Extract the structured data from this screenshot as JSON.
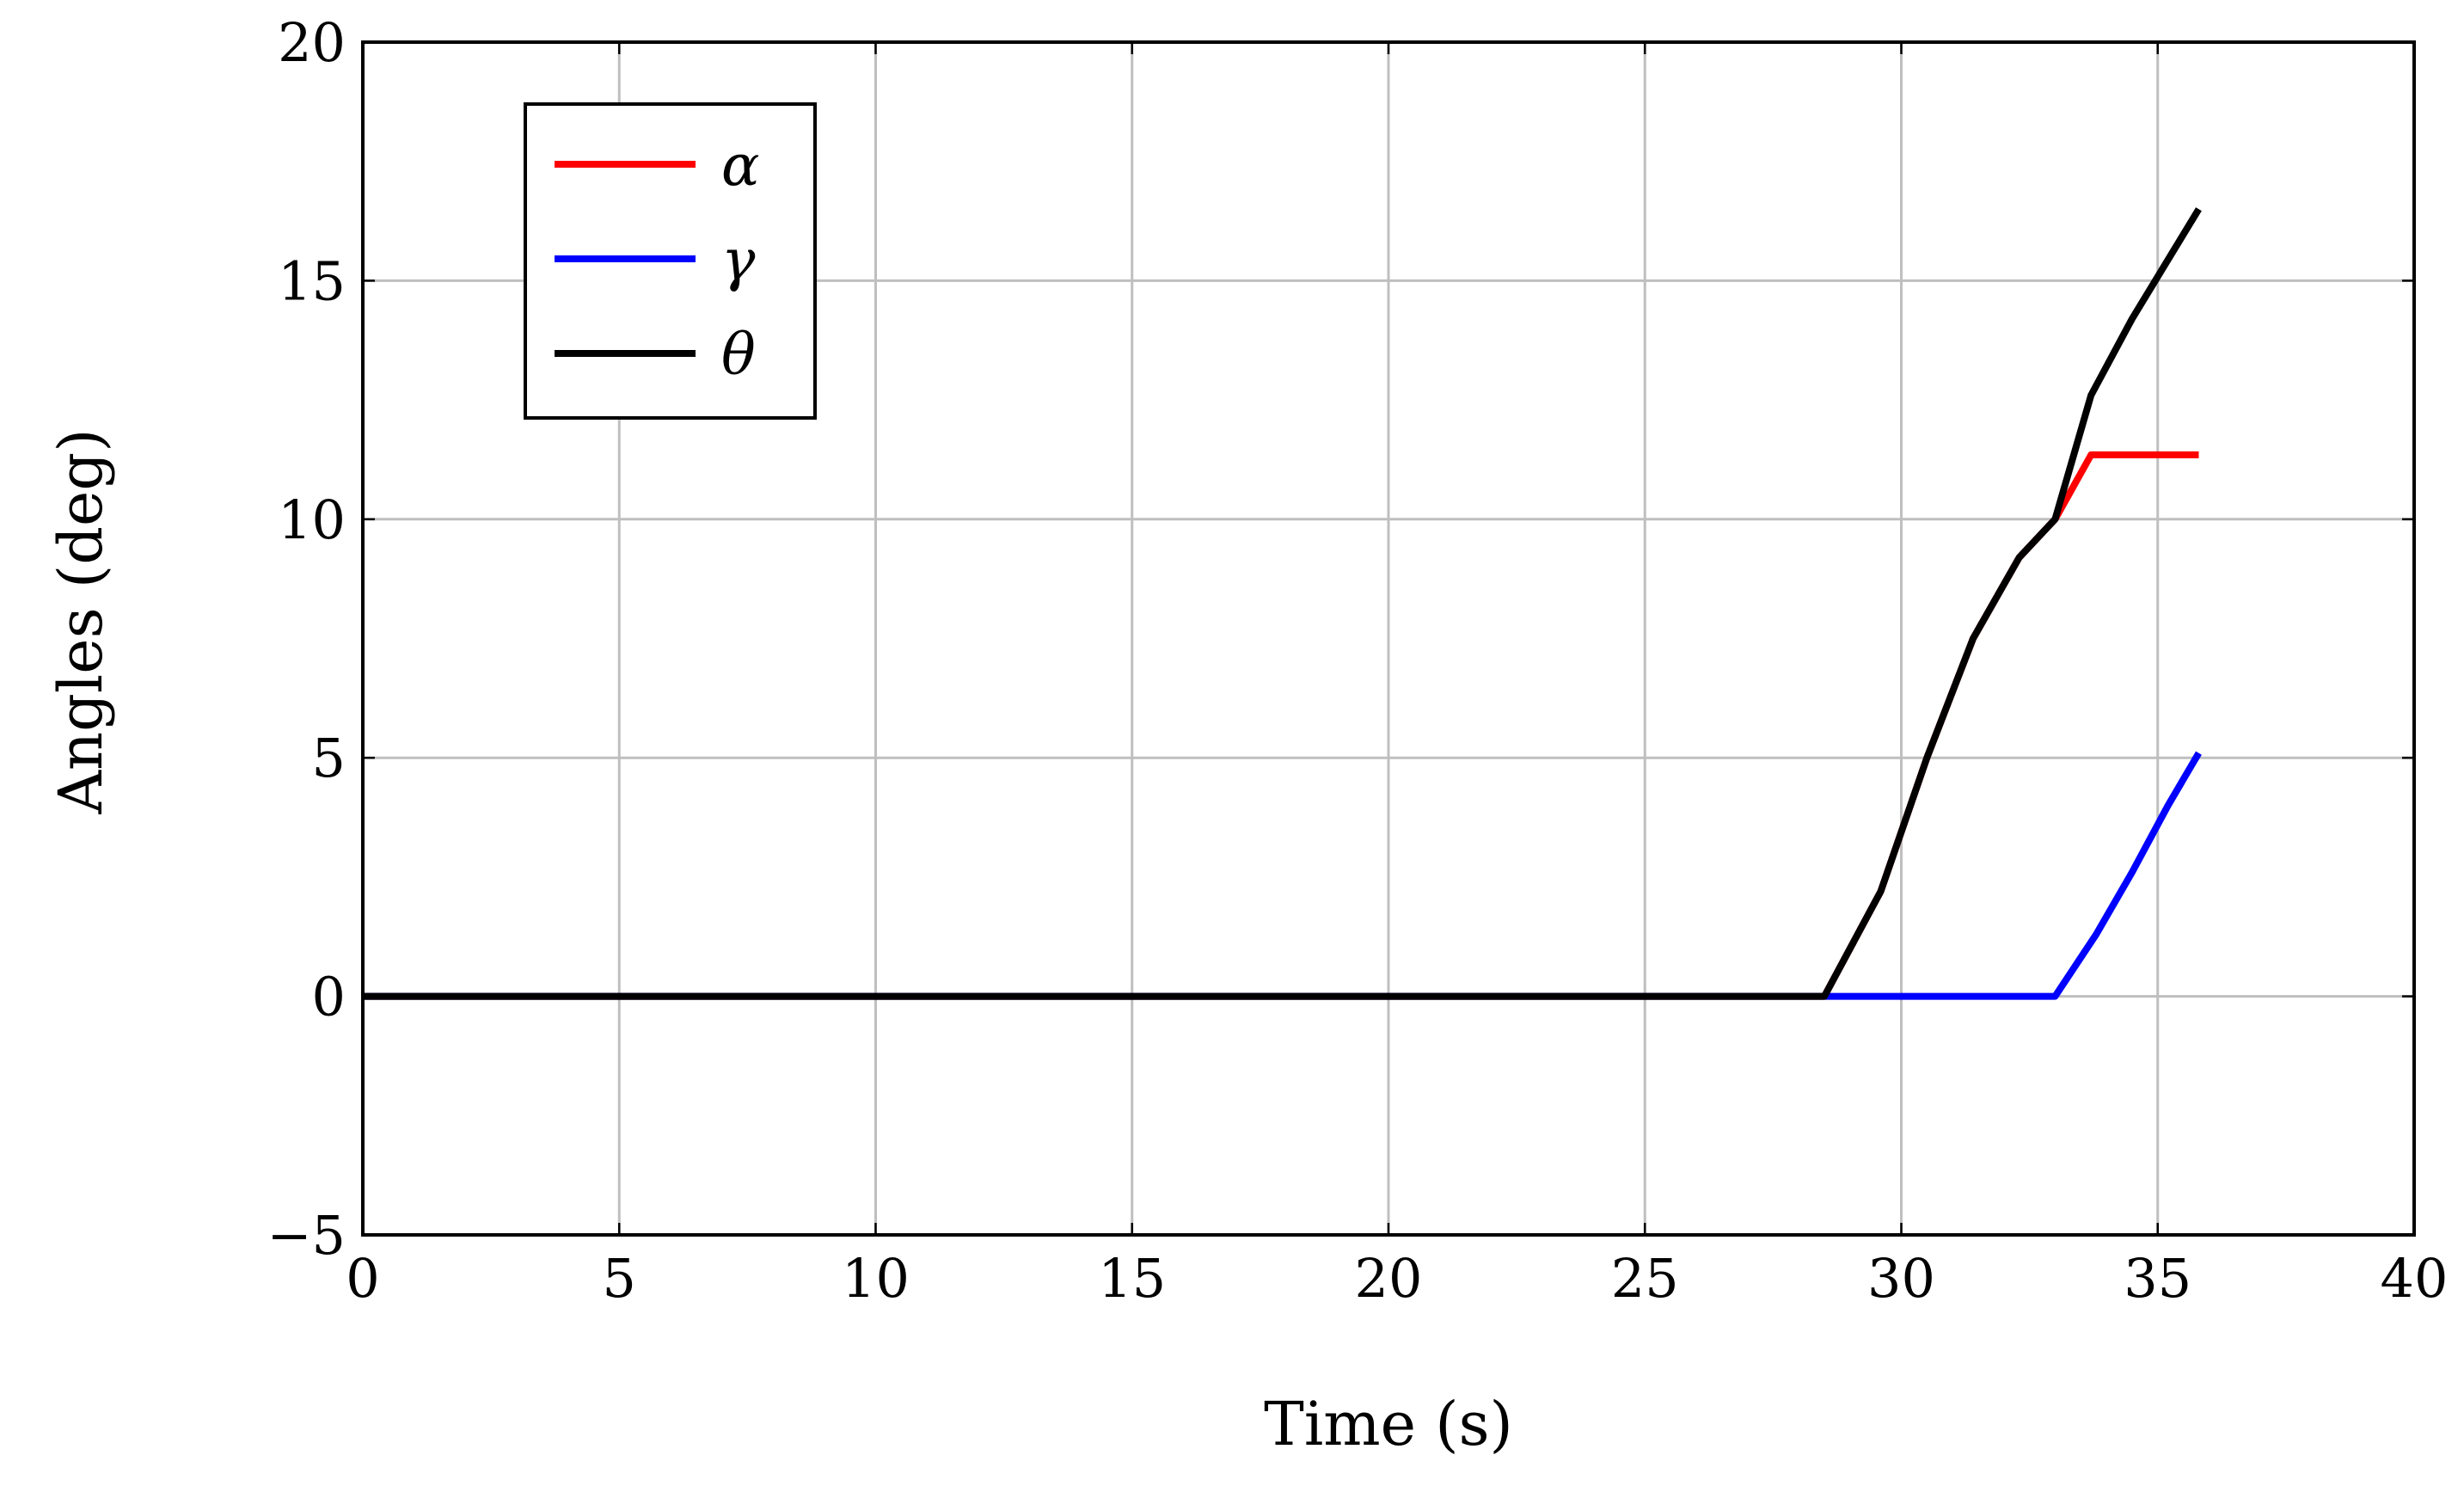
{
  "chart_data": {
    "type": "line",
    "title": "",
    "xlabel": "Time (s)",
    "ylabel": "Angles (deg)",
    "xlim": [
      0,
      40
    ],
    "ylim": [
      -5,
      20
    ],
    "xticks": [
      0,
      5,
      10,
      15,
      20,
      25,
      30,
      35,
      40
    ],
    "yticks": [
      -5,
      0,
      5,
      10,
      15,
      20
    ],
    "xtick_labels": [
      "0",
      "5",
      "10",
      "15",
      "20",
      "25",
      "30",
      "35",
      "40"
    ],
    "ytick_labels": [
      "−5",
      "0",
      "5",
      "10",
      "15",
      "20"
    ],
    "grid": true,
    "legend_position": "top-left",
    "series": [
      {
        "name": "α",
        "color": "#ff0000",
        "x": [
          0,
          28.5,
          29.6,
          30.5,
          31.4,
          32.3,
          33.0,
          33.7,
          34.5,
          35.8
        ],
        "y": [
          0,
          0,
          2.2,
          5.0,
          7.5,
          9.2,
          10.0,
          11.35,
          11.35,
          11.35
        ]
      },
      {
        "name": "γ",
        "color": "#0000ff",
        "x": [
          0,
          28.5,
          33.0,
          33.8,
          34.5,
          35.2,
          35.8
        ],
        "y": [
          0,
          0,
          0,
          1.3,
          2.6,
          4.0,
          5.1
        ]
      },
      {
        "name": "θ",
        "color": "#000000",
        "x": [
          0,
          28.5,
          29.6,
          30.5,
          31.4,
          32.3,
          33.0,
          33.7,
          34.5,
          35.8
        ],
        "y": [
          0,
          0,
          2.2,
          5.0,
          7.5,
          9.2,
          10.0,
          12.6,
          14.2,
          16.5
        ]
      }
    ]
  }
}
